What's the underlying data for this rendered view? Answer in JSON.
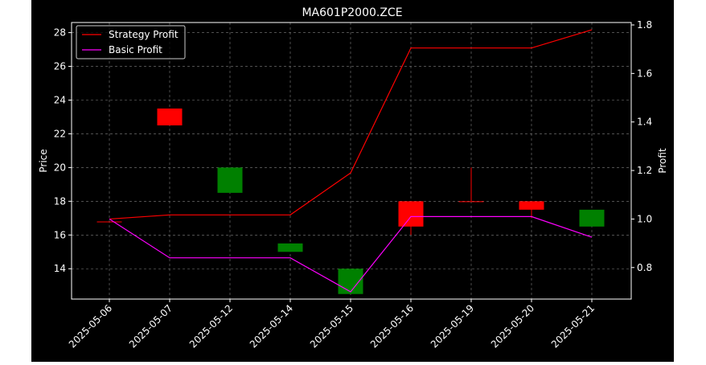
{
  "chart_data": {
    "type": "candlestick",
    "title": "MA601P2000.ZCE",
    "ylabel_left": "Price",
    "ylabel_right": "Profit",
    "ylim_left": [
      12.2,
      28.6
    ],
    "ylim_right": [
      0.67,
      1.81
    ],
    "yticks_left": [
      14,
      16,
      18,
      20,
      22,
      24,
      26,
      28
    ],
    "yticks_right": [
      0.8,
      1.0,
      1.2,
      1.4,
      1.6,
      1.8
    ],
    "grid": true,
    "legend_position": "top-left",
    "categories": [
      "2025-05-06",
      "2025-05-07",
      "2025-05-12",
      "2025-05-14",
      "2025-05-15",
      "2025-05-16",
      "2025-05-19",
      "2025-05-20",
      "2025-05-21"
    ],
    "candles": [
      {
        "open": 16.8,
        "high": 16.8,
        "low": 16.8,
        "close": 16.8
      },
      {
        "open": 22.5,
        "high": 23.5,
        "low": 22.5,
        "close": 23.5
      },
      {
        "open": 20.0,
        "high": 20.0,
        "low": 18.5,
        "close": 18.5
      },
      {
        "open": 15.5,
        "high": 15.5,
        "low": 15.0,
        "close": 15.0
      },
      {
        "open": 14.0,
        "high": 14.0,
        "low": 12.5,
        "close": 12.5
      },
      {
        "open": 16.5,
        "high": 18.0,
        "low": 16.0,
        "close": 18.0
      },
      {
        "open": 18.0,
        "high": 20.0,
        "low": 18.0,
        "close": 18.0
      },
      {
        "open": 17.5,
        "high": 18.0,
        "low": 17.0,
        "close": 18.0
      },
      {
        "open": 17.5,
        "high": 17.5,
        "low": 16.5,
        "close": 16.5
      }
    ],
    "series": [
      {
        "name": "Strategy Profit",
        "color": "#ff0000",
        "values": [
          1.0,
          1.017,
          1.017,
          1.017,
          1.19,
          1.705,
          1.705,
          1.705,
          1.78
        ]
      },
      {
        "name": "Basic Profit",
        "color": "#ff00ff",
        "values": [
          1.0,
          0.84,
          0.84,
          0.84,
          0.7,
          1.01,
          1.01,
          1.01,
          0.925
        ]
      }
    ],
    "colors": {
      "up": "#ff0000",
      "down": "#008000",
      "background": "#000000",
      "foreground": "#ffffff",
      "grid": "#808080"
    }
  }
}
